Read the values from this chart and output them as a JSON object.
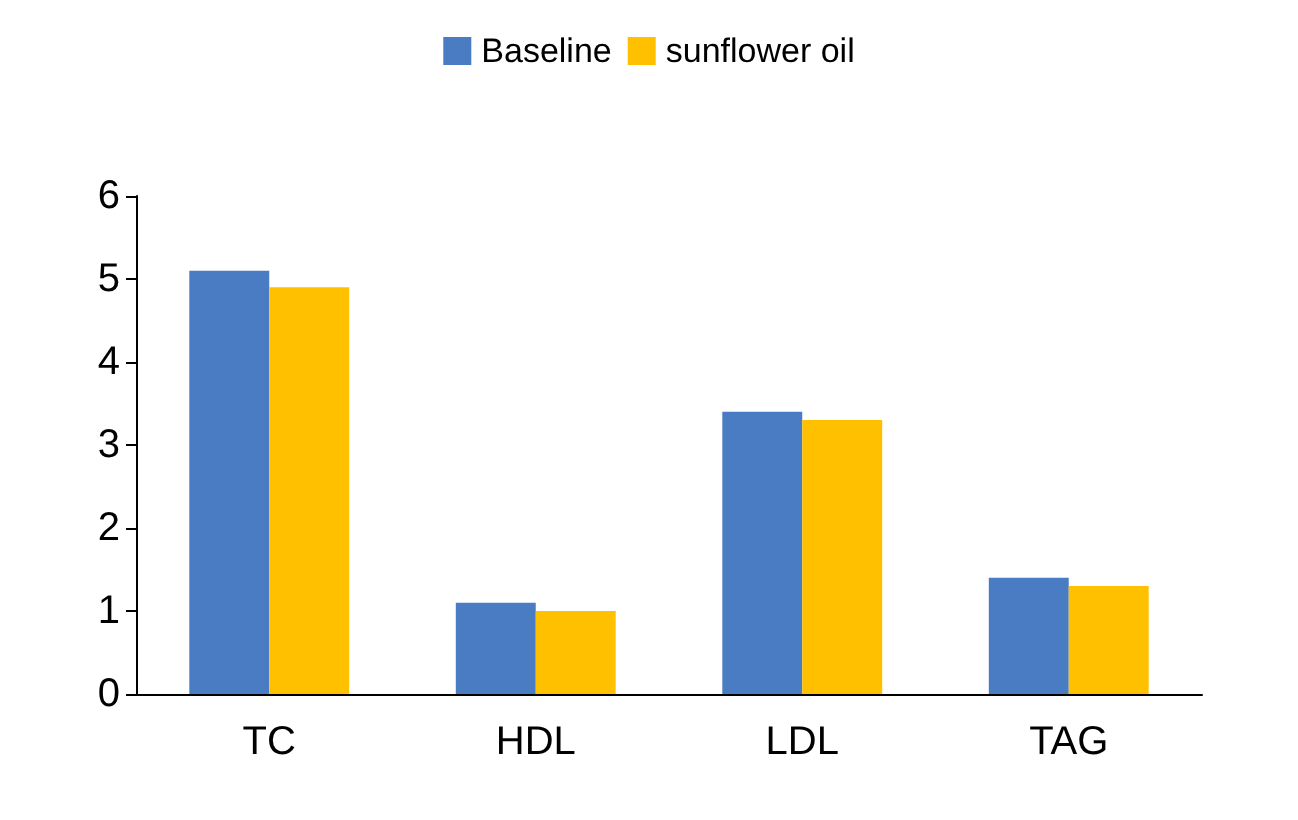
{
  "chart_data": {
    "type": "bar",
    "categories": [
      "TC",
      "HDL",
      "LDL",
      "TAG"
    ],
    "series": [
      {
        "name": "Baseline",
        "color": "#4a7cc4",
        "values": [
          5.1,
          1.1,
          3.4,
          1.4
        ]
      },
      {
        "name": "sunflower oil",
        "color": "#ffc000",
        "values": [
          4.9,
          1.0,
          3.3,
          1.3
        ]
      }
    ],
    "ylim": [
      0,
      6
    ],
    "yticks": [
      0,
      1,
      2,
      3,
      4,
      5,
      6
    ],
    "grid": false,
    "legend": "top"
  }
}
